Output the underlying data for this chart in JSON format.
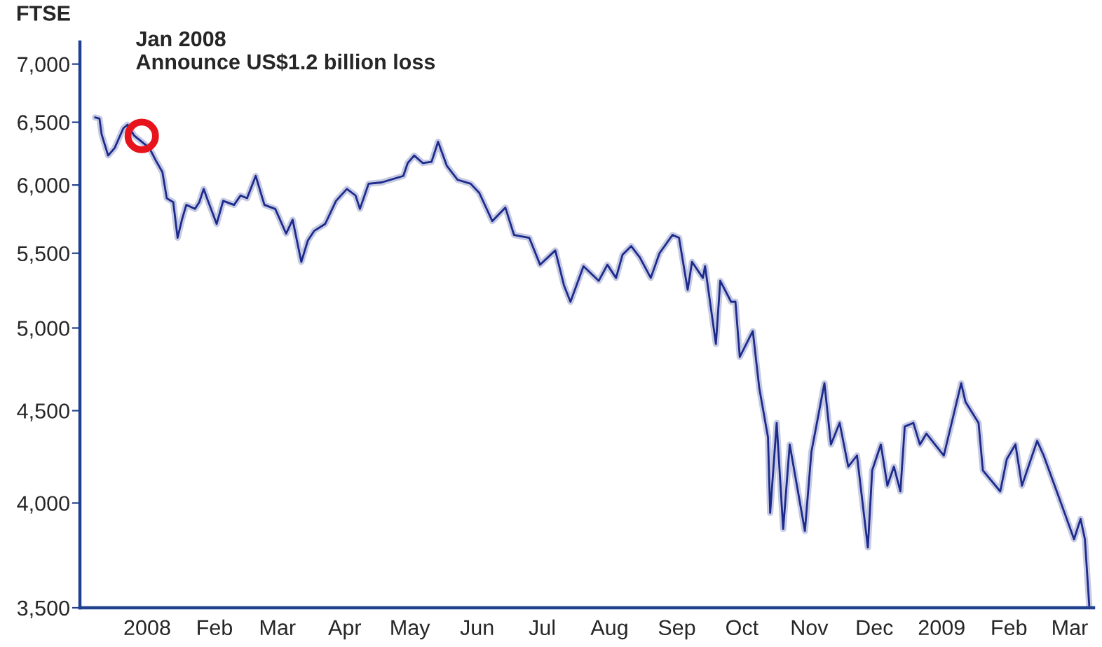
{
  "chart_data": {
    "type": "line",
    "ylabel": "FTSE",
    "log": true,
    "x": [
      "2007-12-08",
      "2007-12-10",
      "2007-12-11",
      "2007-12-14",
      "2007-12-17",
      "2007-12-21",
      "2007-12-23",
      "2007-12-26",
      "2008-01-02",
      "2008-01-05",
      "2008-01-08",
      "2008-01-10",
      "2008-01-13",
      "2008-01-15",
      "2008-01-17",
      "2008-01-19",
      "2008-01-23",
      "2008-01-25",
      "2008-01-27",
      "2008-01-29",
      "2008-02-02",
      "2008-02-05",
      "2008-02-10",
      "2008-02-13",
      "2008-02-16",
      "2008-02-20",
      "2008-02-24",
      "2008-02-29",
      "2008-03-05",
      "2008-03-08",
      "2008-03-12",
      "2008-03-15",
      "2008-03-18",
      "2008-03-23",
      "2008-03-28",
      "2008-04-02",
      "2008-04-06",
      "2008-04-08",
      "2008-04-12",
      "2008-04-18",
      "2008-04-28",
      "2008-04-30",
      "2008-05-03",
      "2008-05-07",
      "2008-05-11",
      "2008-05-14",
      "2008-05-18",
      "2008-05-23",
      "2008-05-29",
      "2008-06-02",
      "2008-06-08",
      "2008-06-14",
      "2008-06-18",
      "2008-06-25",
      "2008-06-30",
      "2008-07-07",
      "2008-07-11",
      "2008-07-14",
      "2008-07-20",
      "2008-07-27",
      "2008-07-31",
      "2008-08-04",
      "2008-08-07",
      "2008-08-11",
      "2008-08-15",
      "2008-08-20",
      "2008-08-24",
      "2008-08-30",
      "2008-09-02",
      "2008-09-06",
      "2008-09-08",
      "2008-09-13",
      "2008-09-14",
      "2008-09-19",
      "2008-09-21",
      "2008-09-26",
      "2008-09-28",
      "2008-09-30",
      "2008-10-06",
      "2008-10-09",
      "2008-10-13",
      "2008-10-14",
      "2008-10-17",
      "2008-10-20",
      "2008-10-23",
      "2008-10-30",
      "2008-11-02",
      "2008-11-08",
      "2008-11-11",
      "2008-11-15",
      "2008-11-19",
      "2008-11-23",
      "2008-11-28",
      "2008-11-30",
      "2008-12-04",
      "2008-12-07",
      "2008-12-10",
      "2008-12-13",
      "2008-12-15",
      "2008-12-19",
      "2008-12-22",
      "2008-12-25",
      "2009-01-02",
      "2009-01-06",
      "2009-01-10",
      "2009-01-12",
      "2009-01-18",
      "2009-01-20",
      "2009-01-28",
      "2009-01-31",
      "2009-02-04",
      "2009-02-07",
      "2009-02-14",
      "2009-02-17",
      "2009-02-24",
      "2009-03-03",
      "2009-03-06",
      "2009-03-08",
      "2009-03-10"
    ],
    "series": [
      {
        "color": "#1c2a8c",
        "values": [
          6540,
          6530,
          6400,
          6230,
          6290,
          6450,
          6480,
          6390,
          6290,
          6190,
          6100,
          5900,
          5870,
          5610,
          5740,
          5850,
          5820,
          5870,
          5970,
          5880,
          5710,
          5880,
          5850,
          5920,
          5900,
          6070,
          5850,
          5820,
          5640,
          5740,
          5440,
          5590,
          5660,
          5710,
          5880,
          5970,
          5920,
          5820,
          6010,
          6020,
          6070,
          6170,
          6230,
          6170,
          6180,
          6340,
          6150,
          6040,
          6010,
          5940,
          5730,
          5830,
          5630,
          5610,
          5420,
          5520,
          5280,
          5170,
          5410,
          5310,
          5420,
          5330,
          5490,
          5550,
          5470,
          5330,
          5500,
          5630,
          5610,
          5250,
          5440,
          5330,
          5410,
          4900,
          5310,
          5170,
          5170,
          4820,
          4980,
          4630,
          4350,
          3950,
          4430,
          3870,
          4310,
          3860,
          4270,
          4660,
          4310,
          4430,
          4190,
          4250,
          3780,
          4170,
          4310,
          4090,
          4190,
          4060,
          4410,
          4430,
          4310,
          4370,
          4250,
          4450,
          4660,
          4550,
          4430,
          4170,
          4060,
          4230,
          4310,
          4090,
          4330,
          4250,
          4030,
          3820,
          3920,
          3820,
          3510
        ]
      }
    ],
    "xlim": [
      "2007-12-01",
      "2009-03-12"
    ],
    "xticks": [
      {
        "value": "2008-01-01",
        "label": "2008"
      },
      {
        "value": "2008-02-01",
        "label": "Feb"
      },
      {
        "value": "2008-03-01",
        "label": "Mar"
      },
      {
        "value": "2008-04-01",
        "label": "Apr"
      },
      {
        "value": "2008-05-01",
        "label": "May"
      },
      {
        "value": "2008-06-01",
        "label": "Jun"
      },
      {
        "value": "2008-07-01",
        "label": "Jul"
      },
      {
        "value": "2008-08-01",
        "label": "Aug"
      },
      {
        "value": "2008-09-01",
        "label": "Sep"
      },
      {
        "value": "2008-10-01",
        "label": "Oct"
      },
      {
        "value": "2008-11-01",
        "label": "Nov"
      },
      {
        "value": "2008-12-01",
        "label": "Dec"
      },
      {
        "value": "2009-01-01",
        "label": "2009"
      },
      {
        "value": "2009-02-01",
        "label": "Feb"
      },
      {
        "value": "2009-03-01",
        "label": "Mar"
      }
    ],
    "ylim": [
      3500,
      7200
    ],
    "yticks": [
      {
        "value": 3500,
        "label": "3,500"
      },
      {
        "value": 4000,
        "label": "4,000"
      },
      {
        "value": 4500,
        "label": "4,500"
      },
      {
        "value": 5000,
        "label": "5,000"
      },
      {
        "value": 5500,
        "label": "5,500"
      },
      {
        "value": 6000,
        "label": "6,000"
      },
      {
        "value": 6500,
        "label": "6,500"
      },
      {
        "value": 7000,
        "label": "7,000"
      }
    ],
    "annotations": [
      "Jan 2008\nAnnounce US$1.2 billion loss"
    ]
  }
}
